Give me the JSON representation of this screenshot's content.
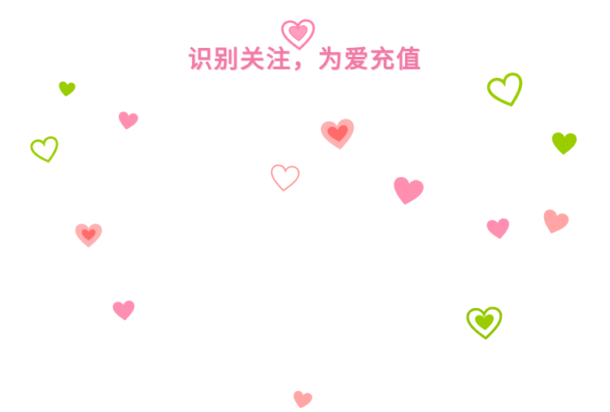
{
  "title": "识别关注，为爱充值",
  "colors": {
    "pink": "#ff8fb1",
    "pink_light": "#ffb3c4",
    "salmon": "#ff9a9a",
    "salmon_dark": "#ff6b6b",
    "green": "#9acd00",
    "title_pink": "#f07aa6"
  },
  "decorations": [
    {
      "name": "heart-icon-top",
      "kind": "double-outline",
      "color": "pink"
    },
    {
      "name": "heart-icon-green-small",
      "kind": "solid",
      "color": "green"
    },
    {
      "name": "heart-icon-pink-left",
      "kind": "solid",
      "color": "pink"
    },
    {
      "name": "heart-icon-green-outline-left",
      "kind": "outline",
      "color": "green"
    },
    {
      "name": "heart-icon-salmon-center",
      "kind": "layered",
      "color": "salmon"
    },
    {
      "name": "heart-icon-outline-center",
      "kind": "outline",
      "color": "salmon"
    },
    {
      "name": "heart-icon-pink-center",
      "kind": "solid",
      "color": "pink"
    },
    {
      "name": "heart-icon-salmon-left",
      "kind": "layered",
      "color": "salmon"
    },
    {
      "name": "heart-icon-pink-lower-left",
      "kind": "solid",
      "color": "pink"
    },
    {
      "name": "heart-icon-green-outline-right",
      "kind": "outline",
      "color": "green"
    },
    {
      "name": "heart-icon-green-solid-right",
      "kind": "solid",
      "color": "green"
    },
    {
      "name": "heart-icon-pink-right",
      "kind": "solid",
      "color": "pink"
    },
    {
      "name": "heart-icon-salmon-right",
      "kind": "solid",
      "color": "salmon"
    },
    {
      "name": "heart-icon-green-double-right",
      "kind": "double-outline",
      "color": "green"
    },
    {
      "name": "heart-icon-salmon-bottom",
      "kind": "solid",
      "color": "salmon"
    }
  ]
}
